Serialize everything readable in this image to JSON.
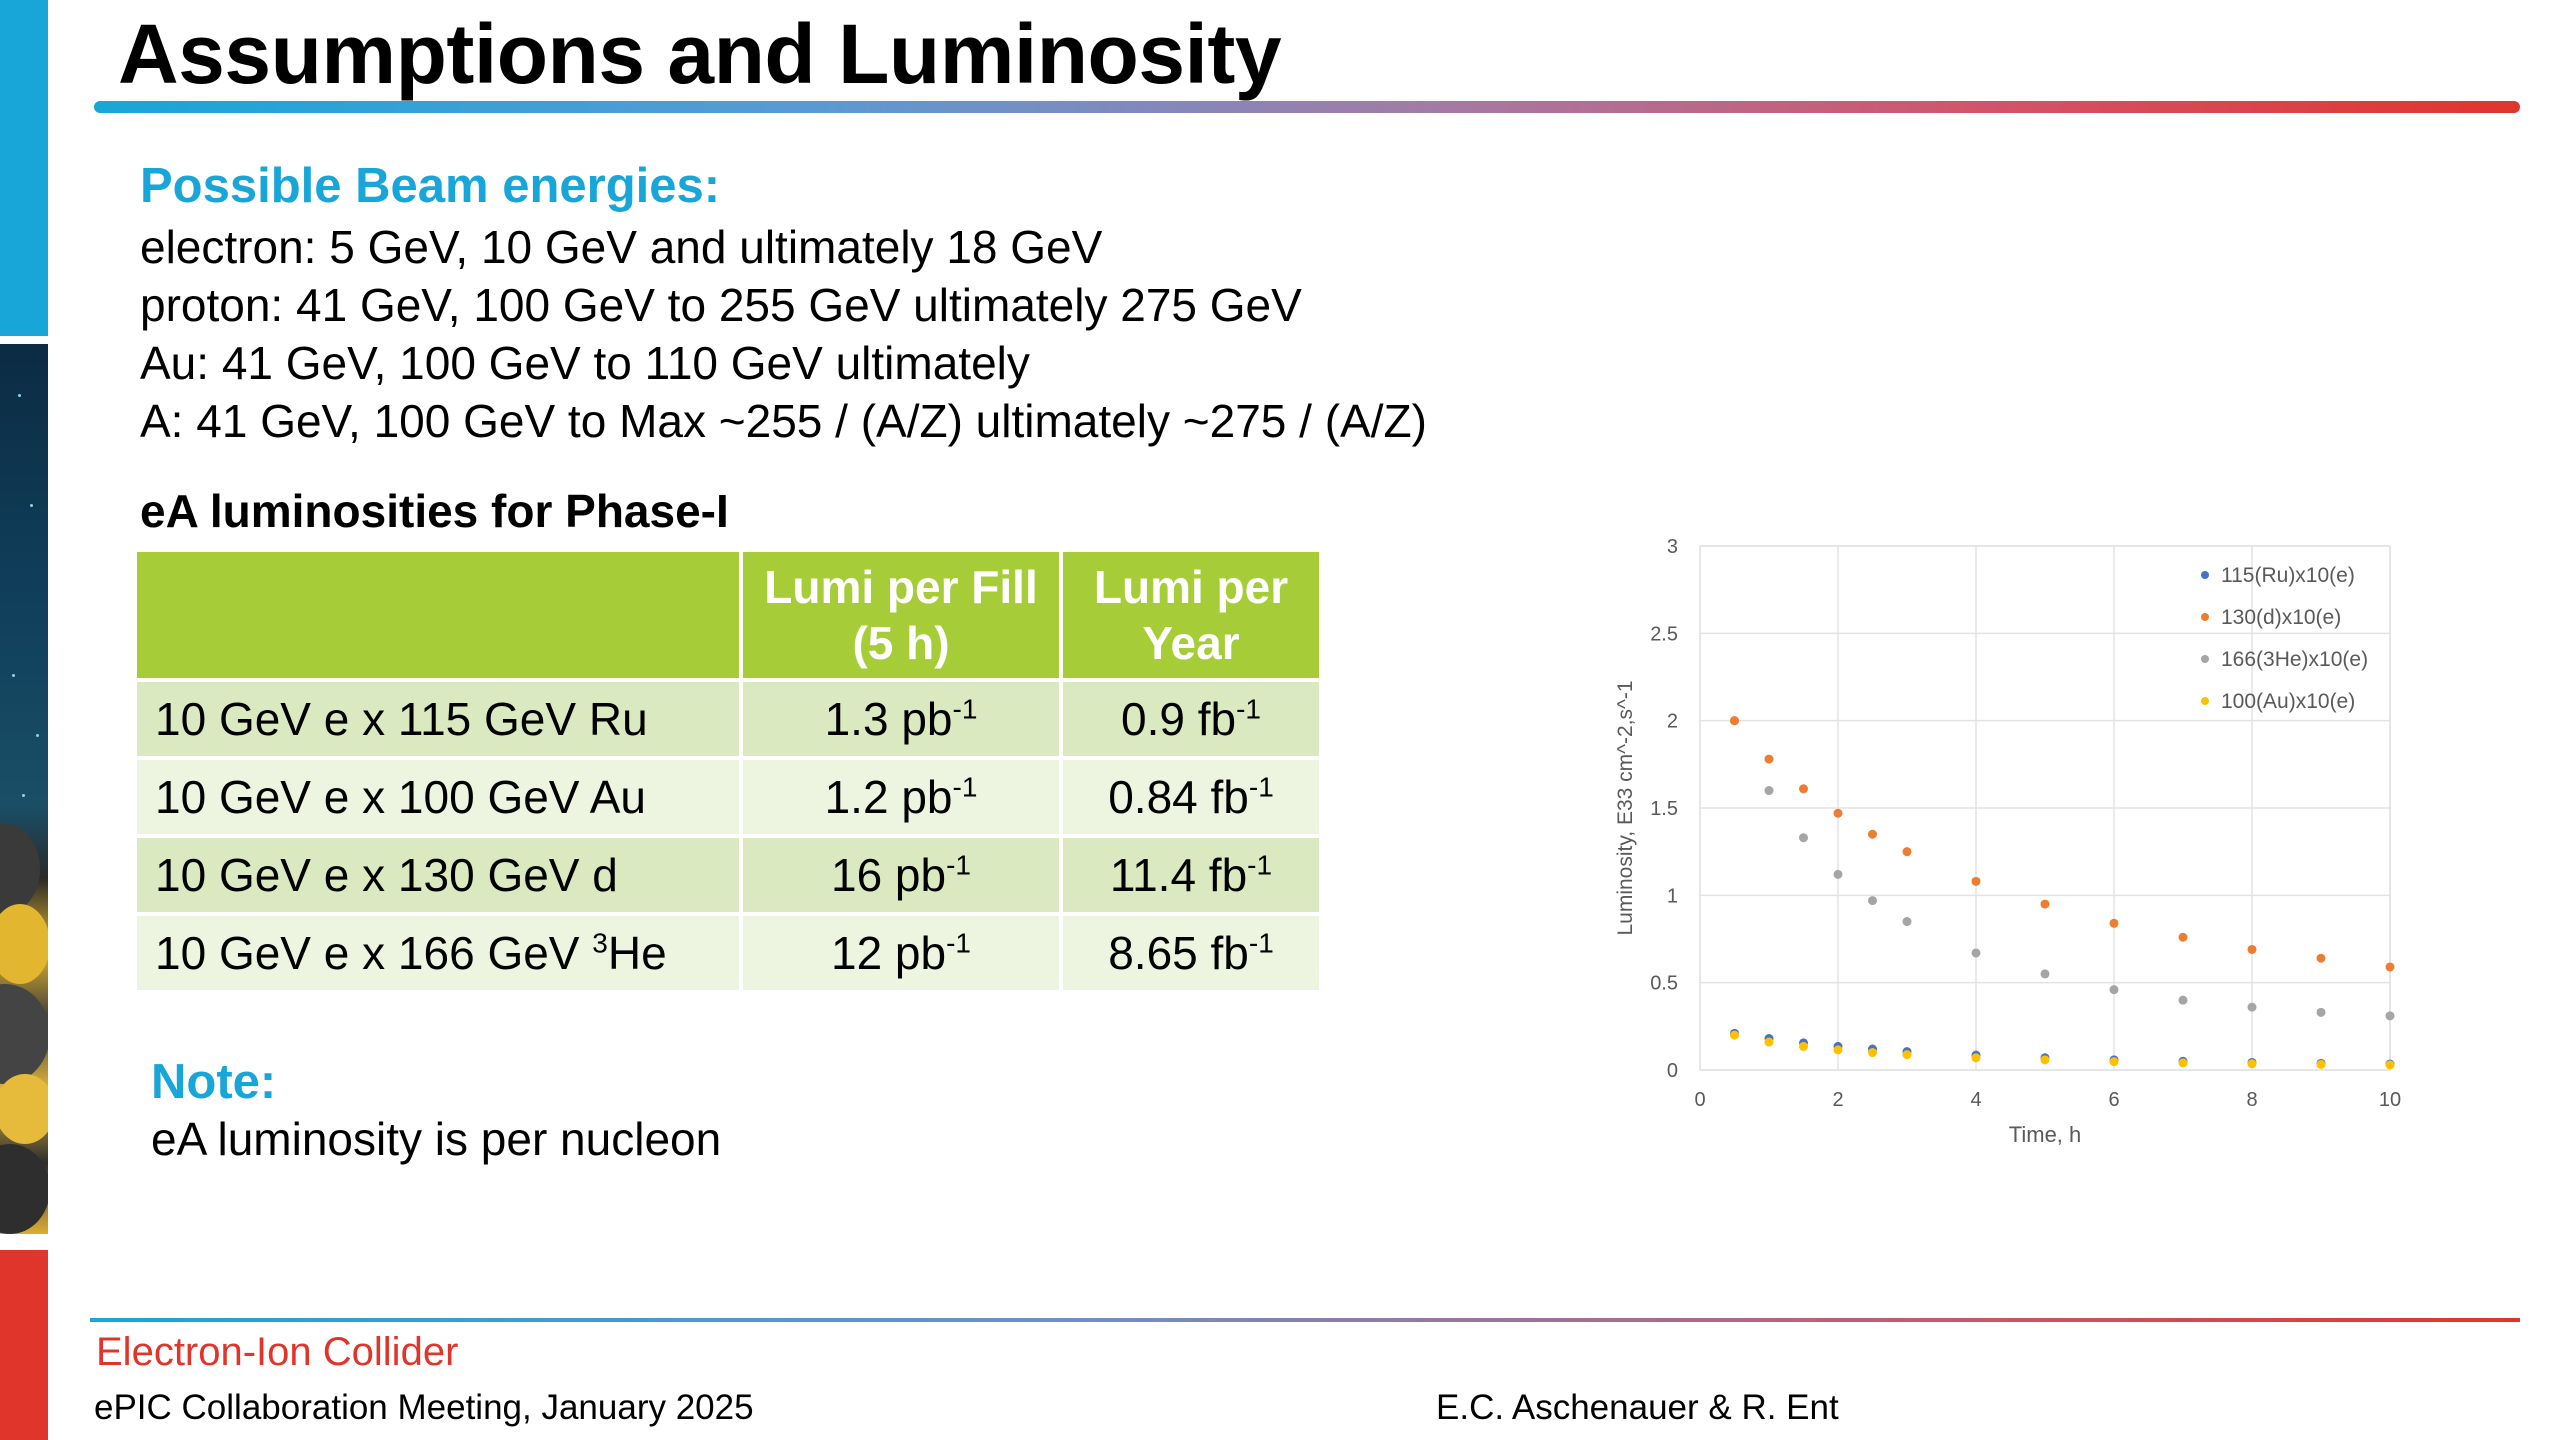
{
  "slide": {
    "title": "Assumptions and Luminosity"
  },
  "beam": {
    "heading": "Possible Beam energies:",
    "lines": [
      "electron: 5 GeV, 10 GeV and ultimately 18 GeV",
      "proton: 41 GeV, 100 GeV to 255 GeV ultimately 275 GeV",
      "Au: 41 GeV, 100 GeV to 110 GeV ultimately",
      "A: 41 GeV, 100 GeV to Max ~255 / (A/Z) ultimately ~275 / (A/Z)"
    ]
  },
  "table": {
    "heading": "eA luminosities for Phase-I",
    "headers": [
      "",
      "Lumi per Fill (5 h)",
      "Lumi per Year"
    ],
    "rows": [
      {
        "config": "10 GeV e x 115 GeV Ru",
        "config_sup": "",
        "config_suffix": "",
        "fill": "1.3 pb",
        "fill_exp": "-1",
        "year": "0.9 fb",
        "year_exp": "-1"
      },
      {
        "config": "10 GeV e x 100 GeV Au",
        "config_sup": "",
        "config_suffix": "",
        "fill": "1.2 pb",
        "fill_exp": "-1",
        "year": "0.84 fb",
        "year_exp": "-1"
      },
      {
        "config": "10 GeV e x 130 GeV d",
        "config_sup": "",
        "config_suffix": "",
        "fill": "16 pb",
        "fill_exp": "-1",
        "year": "11.4 fb",
        "year_exp": "-1"
      },
      {
        "config": "10 GeV e x 166 GeV ",
        "config_sup": "3",
        "config_suffix": "He",
        "fill": "12 pb",
        "fill_exp": "-1",
        "year": "8.65 fb",
        "year_exp": "-1"
      }
    ]
  },
  "note": {
    "heading": "Note:",
    "text": "eA luminosity is per nucleon"
  },
  "chart_data": {
    "type": "scatter",
    "title": "",
    "xlabel": "Time, h",
    "ylabel": "Luminosity, E33 cm^-2,s^-1",
    "xlim": [
      0,
      10
    ],
    "ylim": [
      0,
      3
    ],
    "xticks": [
      "0",
      "2",
      "4",
      "6",
      "8",
      "10"
    ],
    "yticks": [
      "0",
      "0.5",
      "1",
      "1.5",
      "2",
      "2.5",
      "3"
    ],
    "grid": true,
    "legend_position": "top-right",
    "series": [
      {
        "name": "115(Ru)x10(e)",
        "color": "#4472c4",
        "x": [
          0.5,
          1,
          1.5,
          2,
          2.5,
          3,
          4,
          5,
          6,
          7,
          8,
          9,
          10
        ],
        "y": [
          0.21,
          0.18,
          0.155,
          0.135,
          0.12,
          0.105,
          0.085,
          0.07,
          0.058,
          0.05,
          0.043,
          0.038,
          0.034
        ]
      },
      {
        "name": "130(d)x10(e)",
        "color": "#ed7d31",
        "x": [
          0.5,
          1,
          1.5,
          2,
          2.5,
          3,
          4,
          5,
          6,
          7,
          8,
          9,
          10
        ],
        "y": [
          2.0,
          1.78,
          1.61,
          1.47,
          1.35,
          1.25,
          1.08,
          0.95,
          0.84,
          0.76,
          0.69,
          0.64,
          0.59
        ]
      },
      {
        "name": "166(3He)x10(e)",
        "color": "#a5a5a5",
        "x": [
          0.5,
          1,
          1.5,
          2,
          2.5,
          3,
          4,
          5,
          6,
          7,
          8,
          9,
          10
        ],
        "y": [
          2.0,
          1.6,
          1.33,
          1.12,
          0.97,
          0.85,
          0.67,
          0.55,
          0.46,
          0.4,
          0.36,
          0.33,
          0.31
        ]
      },
      {
        "name": "100(Au)x10(e)",
        "color": "#ffc000",
        "x": [
          0.5,
          1,
          1.5,
          2,
          2.5,
          3,
          4,
          5,
          6,
          7,
          8,
          9,
          10
        ],
        "y": [
          0.2,
          0.16,
          0.135,
          0.115,
          0.1,
          0.088,
          0.07,
          0.058,
          0.048,
          0.041,
          0.036,
          0.032,
          0.029
        ]
      }
    ]
  },
  "footer": {
    "org": "Electron-Ion Collider",
    "meeting": "ePIC Collaboration Meeting, January 2025",
    "authors": "E.C. Aschenauer & R. Ent"
  },
  "colors": {
    "accent_blue": "#18a6d9",
    "accent_red": "#e0352b",
    "table_header_green": "#a6cc38"
  }
}
